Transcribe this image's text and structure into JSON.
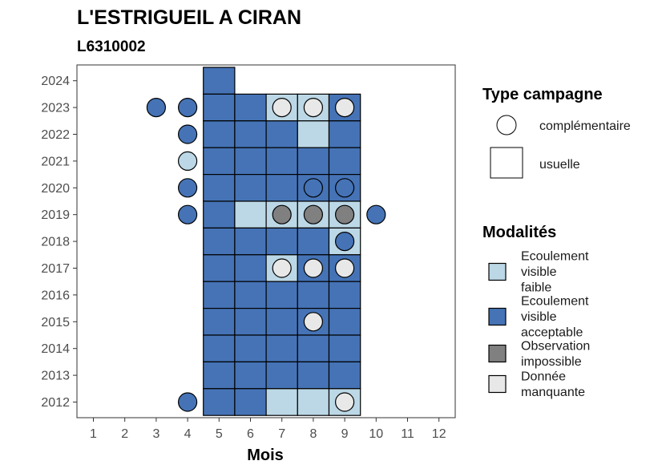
{
  "chart_data": {
    "type": "heatmap",
    "title": "L'ESTRIGUEIL A CIRAN",
    "subtitle": "L6310002",
    "xlabel": "Mois",
    "ylabel": "",
    "x_ticks": [
      "1",
      "2",
      "3",
      "4",
      "5",
      "6",
      "7",
      "8",
      "9",
      "10",
      "11",
      "12"
    ],
    "y_ticks": [
      "2012",
      "2013",
      "2014",
      "2015",
      "2016",
      "2017",
      "2018",
      "2019",
      "2020",
      "2021",
      "2022",
      "2023",
      "2024"
    ],
    "xlim": [
      0.5,
      12.5
    ],
    "ylim": [
      2011.4,
      2024.6
    ],
    "grid": false,
    "modalites": [
      {
        "key": "faible",
        "lines": [
          "Ecoulement",
          "visible",
          "faible"
        ],
        "color": "#bcd8e6"
      },
      {
        "key": "acceptable",
        "lines": [
          "Ecoulement",
          "visible",
          "acceptable"
        ],
        "color": "#4573b6"
      },
      {
        "key": "impossible",
        "lines": [
          "Observation",
          "impossible"
        ],
        "color": "#808080"
      },
      {
        "key": "manquante",
        "lines": [
          "Donnée",
          "manquante"
        ],
        "color": "#e8e8e8"
      }
    ],
    "type_campagne": [
      {
        "key": "complementaire",
        "label": "complémentaire"
      },
      {
        "key": "usuelle",
        "label": "usuelle"
      }
    ],
    "legend_titles": {
      "type": "Type campagne",
      "modalites": "Modalités"
    },
    "points": [
      {
        "year": 2024,
        "month": 5,
        "campagne": "usuelle",
        "modalite": "acceptable"
      },
      {
        "year": 2023,
        "month": 3,
        "campagne": "complementaire",
        "modalite": "acceptable"
      },
      {
        "year": 2023,
        "month": 4,
        "campagne": "complementaire",
        "modalite": "acceptable"
      },
      {
        "year": 2023,
        "month": 5,
        "campagne": "usuelle",
        "modalite": "acceptable"
      },
      {
        "year": 2023,
        "month": 6,
        "campagne": "usuelle",
        "modalite": "acceptable"
      },
      {
        "year": 2023,
        "month": 7,
        "campagne": "usuelle",
        "modalite": "faible"
      },
      {
        "year": 2023,
        "month": 7,
        "campagne": "complementaire",
        "modalite": "manquante"
      },
      {
        "year": 2023,
        "month": 8,
        "campagne": "usuelle",
        "modalite": "faible"
      },
      {
        "year": 2023,
        "month": 8,
        "campagne": "complementaire",
        "modalite": "manquante"
      },
      {
        "year": 2023,
        "month": 9,
        "campagne": "usuelle",
        "modalite": "acceptable"
      },
      {
        "year": 2023,
        "month": 9,
        "campagne": "complementaire",
        "modalite": "manquante"
      },
      {
        "year": 2022,
        "month": 4,
        "campagne": "complementaire",
        "modalite": "acceptable"
      },
      {
        "year": 2022,
        "month": 5,
        "campagne": "usuelle",
        "modalite": "acceptable"
      },
      {
        "year": 2022,
        "month": 6,
        "campagne": "usuelle",
        "modalite": "acceptable"
      },
      {
        "year": 2022,
        "month": 7,
        "campagne": "usuelle",
        "modalite": "acceptable"
      },
      {
        "year": 2022,
        "month": 8,
        "campagne": "usuelle",
        "modalite": "faible"
      },
      {
        "year": 2022,
        "month": 9,
        "campagne": "usuelle",
        "modalite": "acceptable"
      },
      {
        "year": 2021,
        "month": 4,
        "campagne": "complementaire",
        "modalite": "faible"
      },
      {
        "year": 2021,
        "month": 5,
        "campagne": "usuelle",
        "modalite": "acceptable"
      },
      {
        "year": 2021,
        "month": 6,
        "campagne": "usuelle",
        "modalite": "acceptable"
      },
      {
        "year": 2021,
        "month": 7,
        "campagne": "usuelle",
        "modalite": "acceptable"
      },
      {
        "year": 2021,
        "month": 8,
        "campagne": "usuelle",
        "modalite": "acceptable"
      },
      {
        "year": 2021,
        "month": 9,
        "campagne": "usuelle",
        "modalite": "acceptable"
      },
      {
        "year": 2020,
        "month": 4,
        "campagne": "complementaire",
        "modalite": "acceptable"
      },
      {
        "year": 2020,
        "month": 5,
        "campagne": "usuelle",
        "modalite": "acceptable"
      },
      {
        "year": 2020,
        "month": 6,
        "campagne": "usuelle",
        "modalite": "acceptable"
      },
      {
        "year": 2020,
        "month": 7,
        "campagne": "usuelle",
        "modalite": "acceptable"
      },
      {
        "year": 2020,
        "month": 8,
        "campagne": "usuelle",
        "modalite": "acceptable"
      },
      {
        "year": 2020,
        "month": 8,
        "campagne": "complementaire",
        "modalite": "acceptable"
      },
      {
        "year": 2020,
        "month": 9,
        "campagne": "usuelle",
        "modalite": "acceptable"
      },
      {
        "year": 2020,
        "month": 9,
        "campagne": "complementaire",
        "modalite": "acceptable"
      },
      {
        "year": 2019,
        "month": 4,
        "campagne": "complementaire",
        "modalite": "acceptable"
      },
      {
        "year": 2019,
        "month": 5,
        "campagne": "usuelle",
        "modalite": "acceptable"
      },
      {
        "year": 2019,
        "month": 6,
        "campagne": "usuelle",
        "modalite": "faible"
      },
      {
        "year": 2019,
        "month": 7,
        "campagne": "usuelle",
        "modalite": "faible"
      },
      {
        "year": 2019,
        "month": 7,
        "campagne": "complementaire",
        "modalite": "impossible"
      },
      {
        "year": 2019,
        "month": 8,
        "campagne": "usuelle",
        "modalite": "faible"
      },
      {
        "year": 2019,
        "month": 8,
        "campagne": "complementaire",
        "modalite": "impossible"
      },
      {
        "year": 2019,
        "month": 9,
        "campagne": "usuelle",
        "modalite": "faible"
      },
      {
        "year": 2019,
        "month": 9,
        "campagne": "complementaire",
        "modalite": "impossible"
      },
      {
        "year": 2019,
        "month": 10,
        "campagne": "complementaire",
        "modalite": "acceptable"
      },
      {
        "year": 2018,
        "month": 5,
        "campagne": "usuelle",
        "modalite": "acceptable"
      },
      {
        "year": 2018,
        "month": 6,
        "campagne": "usuelle",
        "modalite": "acceptable"
      },
      {
        "year": 2018,
        "month": 7,
        "campagne": "usuelle",
        "modalite": "acceptable"
      },
      {
        "year": 2018,
        "month": 8,
        "campagne": "usuelle",
        "modalite": "acceptable"
      },
      {
        "year": 2018,
        "month": 9,
        "campagne": "usuelle",
        "modalite": "faible"
      },
      {
        "year": 2018,
        "month": 9,
        "campagne": "complementaire",
        "modalite": "acceptable"
      },
      {
        "year": 2017,
        "month": 5,
        "campagne": "usuelle",
        "modalite": "acceptable"
      },
      {
        "year": 2017,
        "month": 6,
        "campagne": "usuelle",
        "modalite": "acceptable"
      },
      {
        "year": 2017,
        "month": 7,
        "campagne": "usuelle",
        "modalite": "faible"
      },
      {
        "year": 2017,
        "month": 7,
        "campagne": "complementaire",
        "modalite": "manquante"
      },
      {
        "year": 2017,
        "month": 8,
        "campagne": "usuelle",
        "modalite": "acceptable"
      },
      {
        "year": 2017,
        "month": 8,
        "campagne": "complementaire",
        "modalite": "manquante"
      },
      {
        "year": 2017,
        "month": 9,
        "campagne": "usuelle",
        "modalite": "acceptable"
      },
      {
        "year": 2017,
        "month": 9,
        "campagne": "complementaire",
        "modalite": "manquante"
      },
      {
        "year": 2016,
        "month": 5,
        "campagne": "usuelle",
        "modalite": "acceptable"
      },
      {
        "year": 2016,
        "month": 6,
        "campagne": "usuelle",
        "modalite": "acceptable"
      },
      {
        "year": 2016,
        "month": 7,
        "campagne": "usuelle",
        "modalite": "acceptable"
      },
      {
        "year": 2016,
        "month": 8,
        "campagne": "usuelle",
        "modalite": "acceptable"
      },
      {
        "year": 2016,
        "month": 9,
        "campagne": "usuelle",
        "modalite": "acceptable"
      },
      {
        "year": 2015,
        "month": 5,
        "campagne": "usuelle",
        "modalite": "acceptable"
      },
      {
        "year": 2015,
        "month": 6,
        "campagne": "usuelle",
        "modalite": "acceptable"
      },
      {
        "year": 2015,
        "month": 7,
        "campagne": "usuelle",
        "modalite": "acceptable"
      },
      {
        "year": 2015,
        "month": 8,
        "campagne": "usuelle",
        "modalite": "acceptable"
      },
      {
        "year": 2015,
        "month": 8,
        "campagne": "complementaire",
        "modalite": "manquante"
      },
      {
        "year": 2015,
        "month": 9,
        "campagne": "usuelle",
        "modalite": "acceptable"
      },
      {
        "year": 2014,
        "month": 5,
        "campagne": "usuelle",
        "modalite": "acceptable"
      },
      {
        "year": 2014,
        "month": 6,
        "campagne": "usuelle",
        "modalite": "acceptable"
      },
      {
        "year": 2014,
        "month": 7,
        "campagne": "usuelle",
        "modalite": "acceptable"
      },
      {
        "year": 2014,
        "month": 8,
        "campagne": "usuelle",
        "modalite": "acceptable"
      },
      {
        "year": 2014,
        "month": 9,
        "campagne": "usuelle",
        "modalite": "acceptable"
      },
      {
        "year": 2013,
        "month": 5,
        "campagne": "usuelle",
        "modalite": "acceptable"
      },
      {
        "year": 2013,
        "month": 6,
        "campagne": "usuelle",
        "modalite": "acceptable"
      },
      {
        "year": 2013,
        "month": 7,
        "campagne": "usuelle",
        "modalite": "acceptable"
      },
      {
        "year": 2013,
        "month": 8,
        "campagne": "usuelle",
        "modalite": "acceptable"
      },
      {
        "year": 2013,
        "month": 9,
        "campagne": "usuelle",
        "modalite": "acceptable"
      },
      {
        "year": 2012,
        "month": 4,
        "campagne": "complementaire",
        "modalite": "acceptable"
      },
      {
        "year": 2012,
        "month": 5,
        "campagne": "usuelle",
        "modalite": "acceptable"
      },
      {
        "year": 2012,
        "month": 6,
        "campagne": "usuelle",
        "modalite": "acceptable"
      },
      {
        "year": 2012,
        "month": 7,
        "campagne": "usuelle",
        "modalite": "faible"
      },
      {
        "year": 2012,
        "month": 8,
        "campagne": "usuelle",
        "modalite": "faible"
      },
      {
        "year": 2012,
        "month": 9,
        "campagne": "usuelle",
        "modalite": "faible"
      },
      {
        "year": 2012,
        "month": 9,
        "campagne": "complementaire",
        "modalite": "manquante"
      }
    ]
  }
}
